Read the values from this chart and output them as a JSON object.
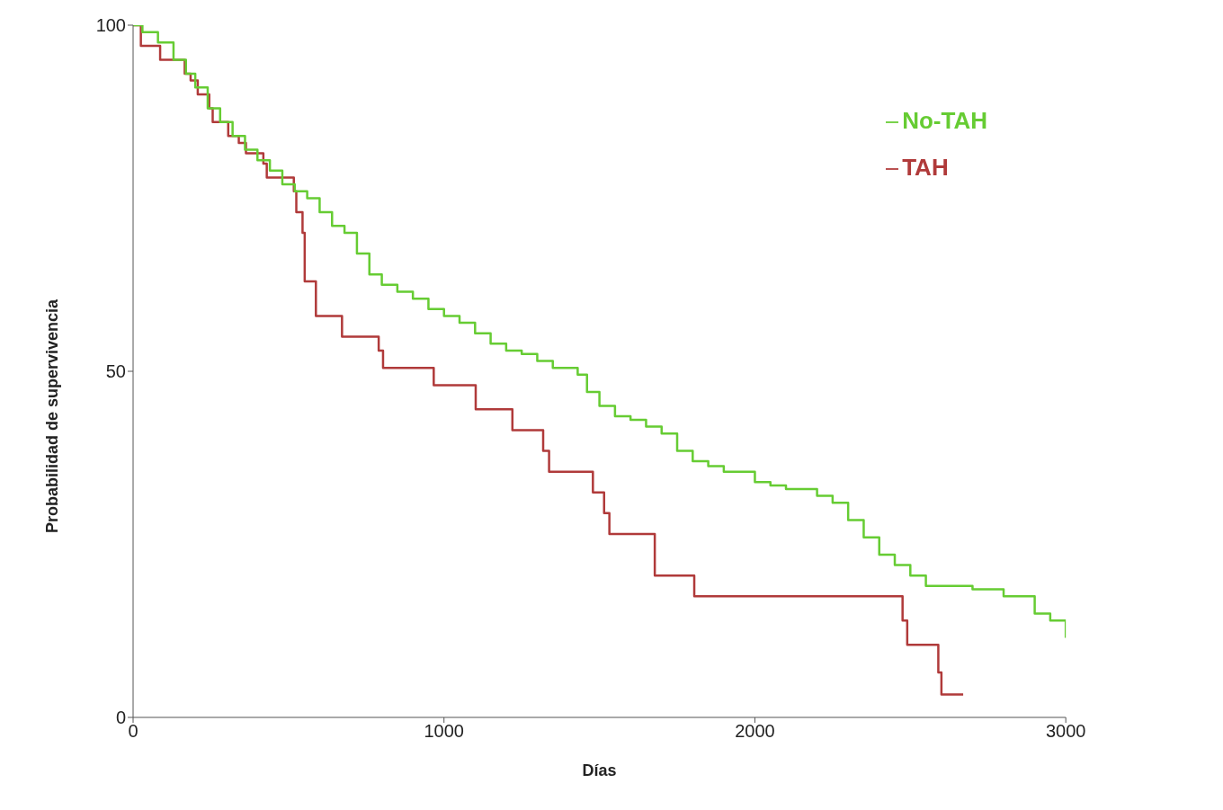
{
  "chart_data": {
    "type": "step",
    "xlabel": "Días",
    "ylabel": "Probabilidad de supervivencia",
    "xlim": [
      0,
      3000
    ],
    "xticks": [
      0,
      1000,
      2000,
      3000
    ],
    "ylim": [
      0,
      100
    ],
    "yticks": [
      0,
      50,
      100
    ],
    "grid": false,
    "legend": "top right",
    "series": [
      {
        "name": "TAH",
        "color": "#b03a3a",
        "x": [
          0,
          25,
          87,
          166,
          185,
          208,
          245,
          256,
          306,
          340,
          363,
          419,
          430,
          517,
          525,
          545,
          552,
          588,
          672,
          790,
          804,
          967,
          1102,
          1220,
          1319,
          1338,
          1479,
          1515,
          1532,
          1678,
          1805,
          2475,
          2490,
          2590,
          2600,
          2670
        ],
        "values": [
          100,
          97,
          95,
          93,
          92,
          90,
          88,
          86,
          84,
          83,
          81.5,
          80,
          78,
          76,
          73,
          70,
          63,
          58,
          55,
          53,
          50.5,
          48,
          44.5,
          41.5,
          38.5,
          35.5,
          32.5,
          29.5,
          26.5,
          20.5,
          17.5,
          14,
          10.5,
          6.5,
          3.3,
          3.3
        ]
      },
      {
        "name": "No-TAH",
        "color": "#66cc33",
        "x": [
          0,
          30,
          80,
          130,
          170,
          200,
          240,
          280,
          320,
          360,
          400,
          440,
          480,
          520,
          560,
          600,
          640,
          680,
          720,
          760,
          800,
          850,
          900,
          950,
          1000,
          1050,
          1100,
          1150,
          1200,
          1250,
          1300,
          1350,
          1430,
          1460,
          1500,
          1550,
          1600,
          1650,
          1700,
          1750,
          1800,
          1850,
          1900,
          2000,
          2050,
          2100,
          2200,
          2250,
          2300,
          2350,
          2400,
          2450,
          2500,
          2550,
          2700,
          2800,
          2900,
          2950,
          3000
        ],
        "values": [
          100,
          99,
          97.5,
          95,
          93,
          91,
          88,
          86,
          84,
          82,
          80.5,
          79,
          77,
          76,
          75,
          73,
          71,
          70,
          67,
          64,
          62.5,
          61.5,
          60.5,
          59,
          58,
          57,
          55.5,
          54,
          53,
          52.5,
          51.5,
          50.5,
          49.5,
          47,
          45,
          43.5,
          43,
          42,
          41,
          38.5,
          37,
          36.3,
          35.5,
          34,
          33.5,
          33,
          32,
          31,
          28.5,
          26,
          23.5,
          22,
          20.5,
          19,
          18.5,
          17.5,
          15,
          14,
          11.5
        ]
      }
    ]
  }
}
